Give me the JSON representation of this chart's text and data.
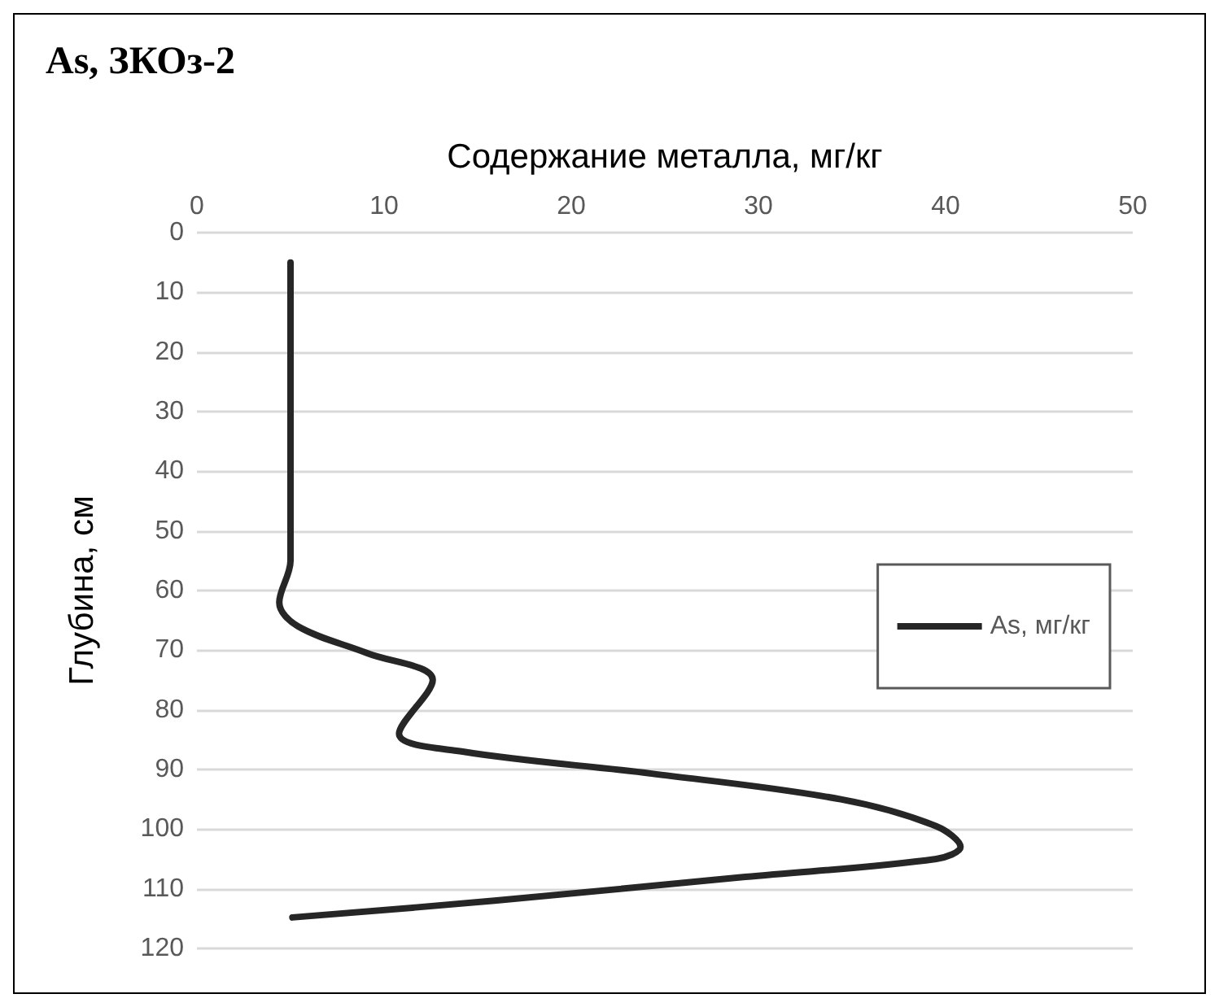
{
  "chart_data": {
    "type": "line",
    "title": "As, ЗКОз-2",
    "xlabel": "Содержание металла, мг/кг",
    "ylabel": "Глубина, см",
    "xlim": [
      0,
      50
    ],
    "xticks": [
      0,
      10,
      20,
      30,
      40,
      50
    ],
    "ylim": [
      120,
      0
    ],
    "yticks": [
      0,
      10,
      20,
      30,
      40,
      50,
      60,
      70,
      80,
      90,
      100,
      110,
      120
    ],
    "grid": "y",
    "legend": "right",
    "line_style": "solid",
    "marker": "none",
    "series": [
      {
        "name": "As, мг/кг",
        "color": "#262626",
        "x": [
          5,
          5,
          4.4,
          5.4,
          9.1,
          12.6,
          10.8,
          14.2,
          24.3,
          34.4,
          39.5,
          40.8,
          39.5,
          29.3,
          15.9,
          5.1
        ],
        "values": [
          5,
          55,
          62,
          66,
          70.5,
          75,
          84,
          87,
          90.7,
          95,
          99.5,
          103,
          105,
          108,
          112,
          114.8
        ]
      }
    ]
  }
}
